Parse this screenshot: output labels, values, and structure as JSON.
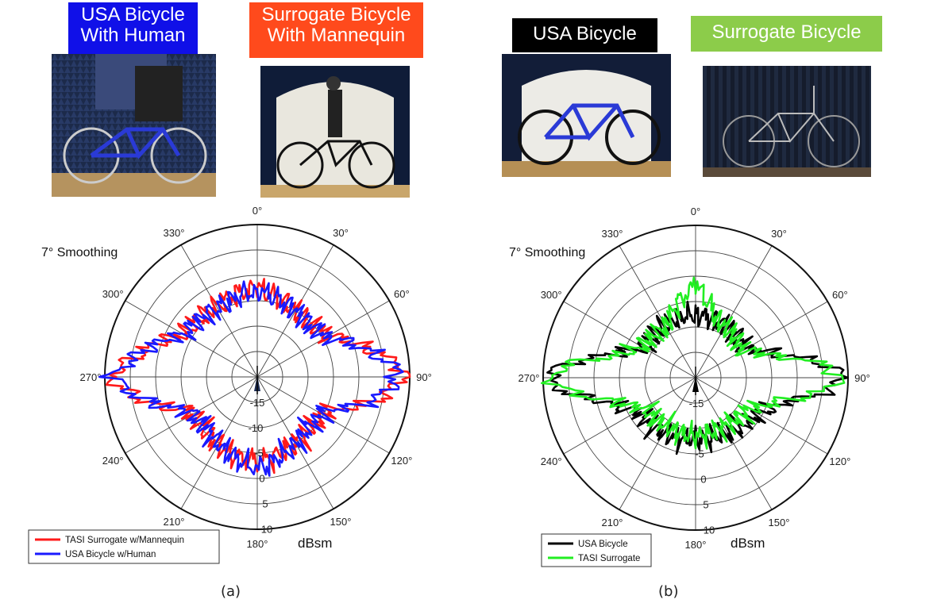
{
  "photos": {
    "a_left_label": [
      "USA Bicycle",
      "With Human"
    ],
    "a_right_label": [
      "Surrogate  Bicycle",
      "With Mannequin"
    ],
    "b_left_label": "USA Bicycle",
    "b_right_label": "Surrogate Bicycle",
    "colors": {
      "blue_box": "#1010e8",
      "orange_box": "#ff4a1c",
      "black_box": "#000000",
      "green_box": "#8ccc4a"
    }
  },
  "captions": {
    "a": "(a)",
    "b": "(b)"
  },
  "chart_data": [
    {
      "type": "polar",
      "smoothing_label": "7° Smoothing",
      "unit_label": "dBsm",
      "angle_ticks": [
        "0°",
        "30°",
        "60°",
        "90°",
        "120°",
        "150°",
        "180°",
        "210°",
        "240°",
        "270°",
        "300°",
        "330°"
      ],
      "radial_ticks": [
        "-15",
        "-10",
        "-5",
        "0",
        "5",
        "10"
      ],
      "radial_range": [
        -20,
        10
      ],
      "grid": true,
      "legend_position": "bottom-left",
      "series": [
        {
          "name": "TASI Surrogate w/Mannequin",
          "color": "#ff1a1a",
          "profile": {
            "0": -2.5,
            "20": -4.5,
            "45": -5.5,
            "60": -4.0,
            "75": 2.0,
            "88": 9.5,
            "90": 8.5,
            "100": 4.5,
            "115": -5.0,
            "135": -5.5,
            "160": -4.5,
            "180": -3.5,
            "200": -4.0,
            "225": -5.5,
            "245": -5.0,
            "262": 5.0,
            "270": 9.0,
            "280": 4.0,
            "300": -3.5,
            "330": -4.0,
            "360": -2.5
          }
        },
        {
          "name": "USA Bicycle w/Human",
          "color": "#1a1aff",
          "profile": {
            "0": -3.0,
            "20": -4.5,
            "45": -5.5,
            "60": -4.5,
            "75": 1.5,
            "88": 8.0,
            "90": 7.5,
            "100": 4.0,
            "115": -5.0,
            "135": -6.0,
            "160": -4.0,
            "180": -2.0,
            "200": -4.0,
            "225": -6.0,
            "245": -5.0,
            "262": 4.5,
            "270": 8.5,
            "280": 4.0,
            "300": -3.5,
            "330": -4.5,
            "360": -3.0
          }
        }
      ]
    },
    {
      "type": "polar",
      "smoothing_label": "7° Smoothing",
      "unit_label": "dBsm",
      "angle_ticks": [
        "0°",
        "30°",
        "60°",
        "90°",
        "120°",
        "150°",
        "180°",
        "210°",
        "240°",
        "270°",
        "300°",
        "330°"
      ],
      "radial_ticks": [
        "-15",
        "-5",
        "0",
        "5",
        "10"
      ],
      "radial_range": [
        -20,
        10
      ],
      "grid": true,
      "legend_position": "bottom-left",
      "series": [
        {
          "name": "USA Bicycle",
          "color": "#000000",
          "profile": {
            "0": -7.5,
            "20": -8.0,
            "45": -8.5,
            "60": -9.0,
            "75": -3.0,
            "85": 6.5,
            "90": 9.0,
            "95": 6.5,
            "105": -2.0,
            "120": -6.0,
            "150": -7.5,
            "180": -8.0,
            "210": -7.5,
            "240": -7.0,
            "255": -2.0,
            "265": 6.5,
            "270": 9.0,
            "275": 6.5,
            "285": -3.0,
            "300": -8.5,
            "330": -8.0,
            "360": -7.5
          }
        },
        {
          "name": "TASI Surrogate",
          "color": "#22ee22",
          "profile": {
            "0": -2.0,
            "20": -8.0,
            "45": -9.0,
            "60": -9.5,
            "75": -4.0,
            "85": 6.0,
            "90": 8.5,
            "95": 6.0,
            "105": -3.0,
            "120": -8.0,
            "150": -9.0,
            "180": -8.5,
            "210": -9.0,
            "240": -8.5,
            "255": -3.0,
            "265": 6.0,
            "270": 8.5,
            "275": 6.0,
            "285": -4.0,
            "300": -8.0,
            "330": -8.5,
            "360": -2.0
          }
        }
      ]
    }
  ]
}
